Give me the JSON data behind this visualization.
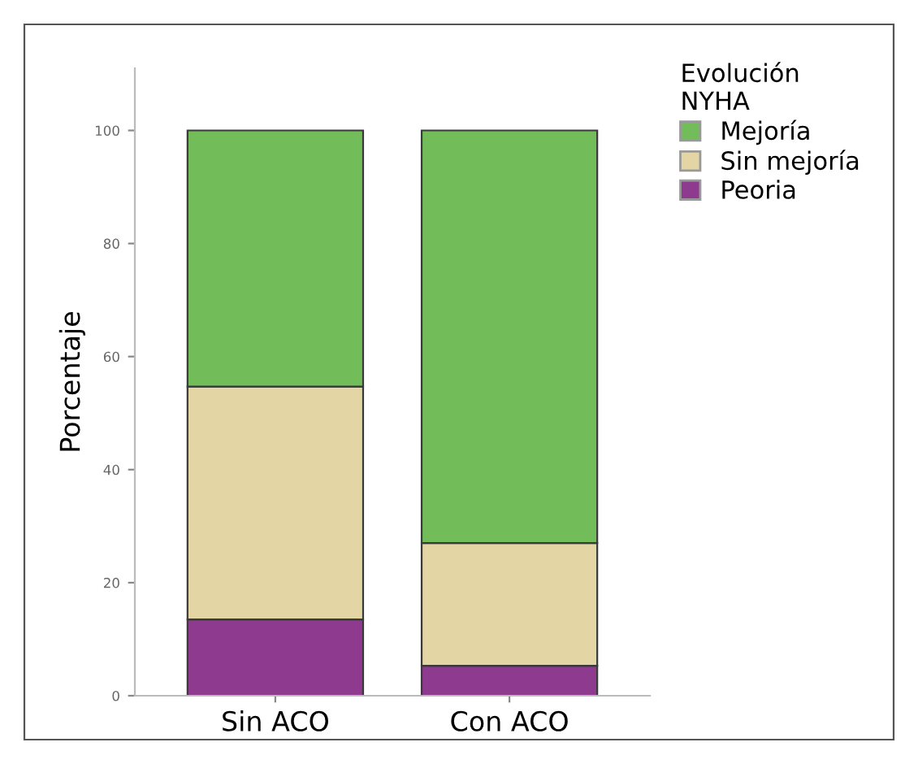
{
  "chart_data": {
    "type": "bar",
    "stacked": true,
    "ylabel": "Porcentaje",
    "legend_title": "Evolución\nNYHA",
    "legend": "top right",
    "categories": [
      "Sin ACO",
      "Con ACO"
    ],
    "series": [
      {
        "name": "Peoria",
        "color": "#8e3a8e",
        "values": [
          13.5,
          5.3
        ]
      },
      {
        "name": "Sin mejoría",
        "color": "#e3d6a4",
        "values": [
          41.2,
          21.7
        ]
      },
      {
        "name": "Mejoría",
        "color": "#72bd5a",
        "values": [
          45.3,
          73.0
        ]
      }
    ],
    "ylim": [
      0,
      111
    ],
    "yticks": [
      0,
      20,
      40,
      60,
      80,
      100
    ],
    "grid": false
  }
}
